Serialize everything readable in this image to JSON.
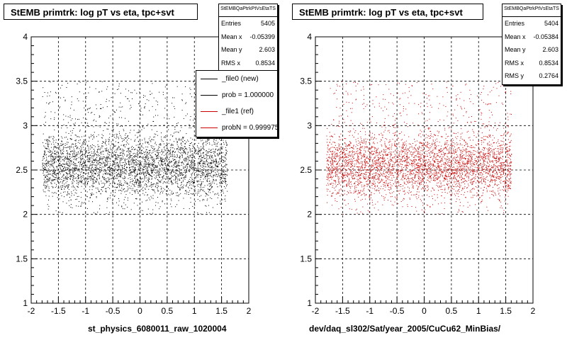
{
  "chart_data": [
    {
      "type": "scatter",
      "title": "StEMB primtrk: log pT vs eta, tpc+svt",
      "xlabel": "st_physics_6080011_raw_1020004",
      "xlim": [
        -2,
        2
      ],
      "ylim": [
        1,
        4
      ],
      "x_ticks": [
        "-2",
        "-1.5",
        "-1",
        "-0.5",
        "0",
        "0.5",
        "1",
        "1.5",
        "2"
      ],
      "y_ticks": [
        "1",
        "1.5",
        "2",
        "2.5",
        "3",
        "3.5",
        "4"
      ],
      "grid": true,
      "marker_color": "#000000",
      "stats": {
        "name": "StEMBQaPtrkPtVsEtaTS",
        "rows": [
          {
            "label": "Entries",
            "value": "5405"
          },
          {
            "label": "Mean x",
            "value": "-0.05399"
          },
          {
            "label": "Mean y",
            "value": "2.603"
          },
          {
            "label": "RMS x",
            "value": "0.8534"
          }
        ]
      },
      "legend": {
        "placement": "top-right",
        "entries": [
          {
            "label": "_file0 (new)",
            "color": "#000000"
          },
          {
            "label": "prob = 1.000000",
            "color": "#000000"
          },
          {
            "label": "_file1 (ref)",
            "color": "#cc0000"
          },
          {
            "label": "probN = 0.999975",
            "color": "#cc0000"
          }
        ]
      },
      "distribution": {
        "x_range": [
          -1.8,
          1.6
        ],
        "y_core": [
          2.05,
          3.05
        ],
        "y_sparse": [
          2.0,
          3.5
        ]
      }
    },
    {
      "type": "scatter",
      "title": "StEMB primtrk: log pT vs eta, tpc+svt",
      "xlabel": "dev/daq_sl302/Sat/year_2005/CuCu62_MinBias/",
      "xlim": [
        -2,
        2
      ],
      "ylim": [
        1,
        4
      ],
      "x_ticks": [
        "-2",
        "-1.5",
        "-1",
        "-0.5",
        "0",
        "0.5",
        "1",
        "1.5",
        "2"
      ],
      "y_ticks": [
        "1",
        "1.5",
        "2",
        "2.5",
        "3",
        "3.5",
        "4"
      ],
      "grid": true,
      "marker_color": "#cc0000",
      "stats": {
        "name": "StEMBQaPtrkPtVsEtaTS",
        "rows": [
          {
            "label": "Entries",
            "value": "5404"
          },
          {
            "label": "Mean x",
            "value": "-0.05384"
          },
          {
            "label": "Mean y",
            "value": "2.603"
          },
          {
            "label": "RMS x",
            "value": "0.8534"
          },
          {
            "label": "RMS y",
            "value": "0.2764"
          }
        ]
      },
      "distribution": {
        "x_range": [
          -1.8,
          1.6
        ],
        "y_core": [
          2.05,
          3.05
        ],
        "y_sparse": [
          2.0,
          3.5
        ]
      }
    }
  ]
}
